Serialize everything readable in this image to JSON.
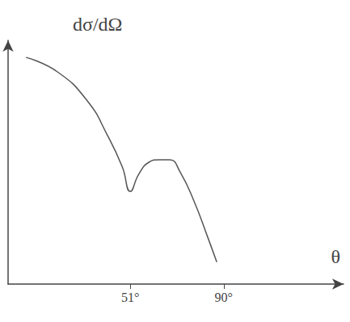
{
  "chart_data": {
    "type": "line",
    "y_label": "dσ/dΩ",
    "x_label": "θ",
    "x": [
      7.5,
      20.7,
      33.2,
      41.5,
      47.7,
      51,
      54.5,
      58.8,
      63.1,
      67.5,
      71.8,
      77.6,
      83.4,
      87.1
    ],
    "values": [
      9.3,
      8.7,
      7.5,
      6.1,
      4.8,
      3.8,
      4.5,
      5.0,
      5.1,
      5.1,
      4.6,
      3.4,
      1.9,
      0.9
    ],
    "color": "#555555",
    "xlim": [
      0,
      140
    ],
    "xticks": [
      {
        "value": 51,
        "label": "51°"
      },
      {
        "value": 90,
        "label": "90°"
      }
    ],
    "ylim": [
      0,
      10
    ],
    "tick_labels": "x",
    "grid": false
  }
}
